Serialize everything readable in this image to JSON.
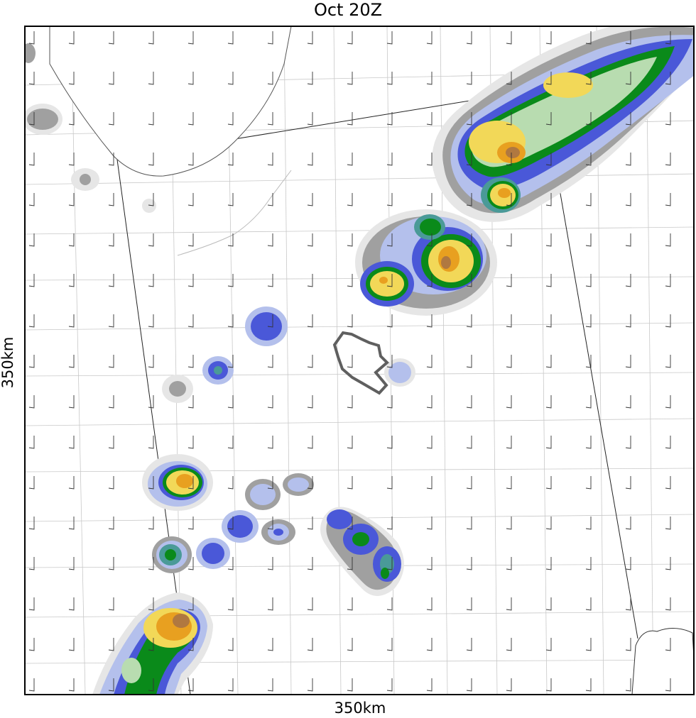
{
  "title": "Oct 20Z",
  "xlabel": "350km",
  "ylabel": "350km",
  "colors": {
    "light_gray": "#e6e6e6",
    "gray": "#a0a0a0",
    "light_blue": "#b4c0ec",
    "blue": "#4a58d8",
    "teal": "#4a9a98",
    "green": "#0a8a1a",
    "light_green": "#b8dcb0",
    "yellow": "#f2d858",
    "orange": "#e8a020",
    "brown": "#b07840",
    "outline": "#5f5f5f"
  },
  "icons": [
    "wind-barb-icon"
  ]
}
